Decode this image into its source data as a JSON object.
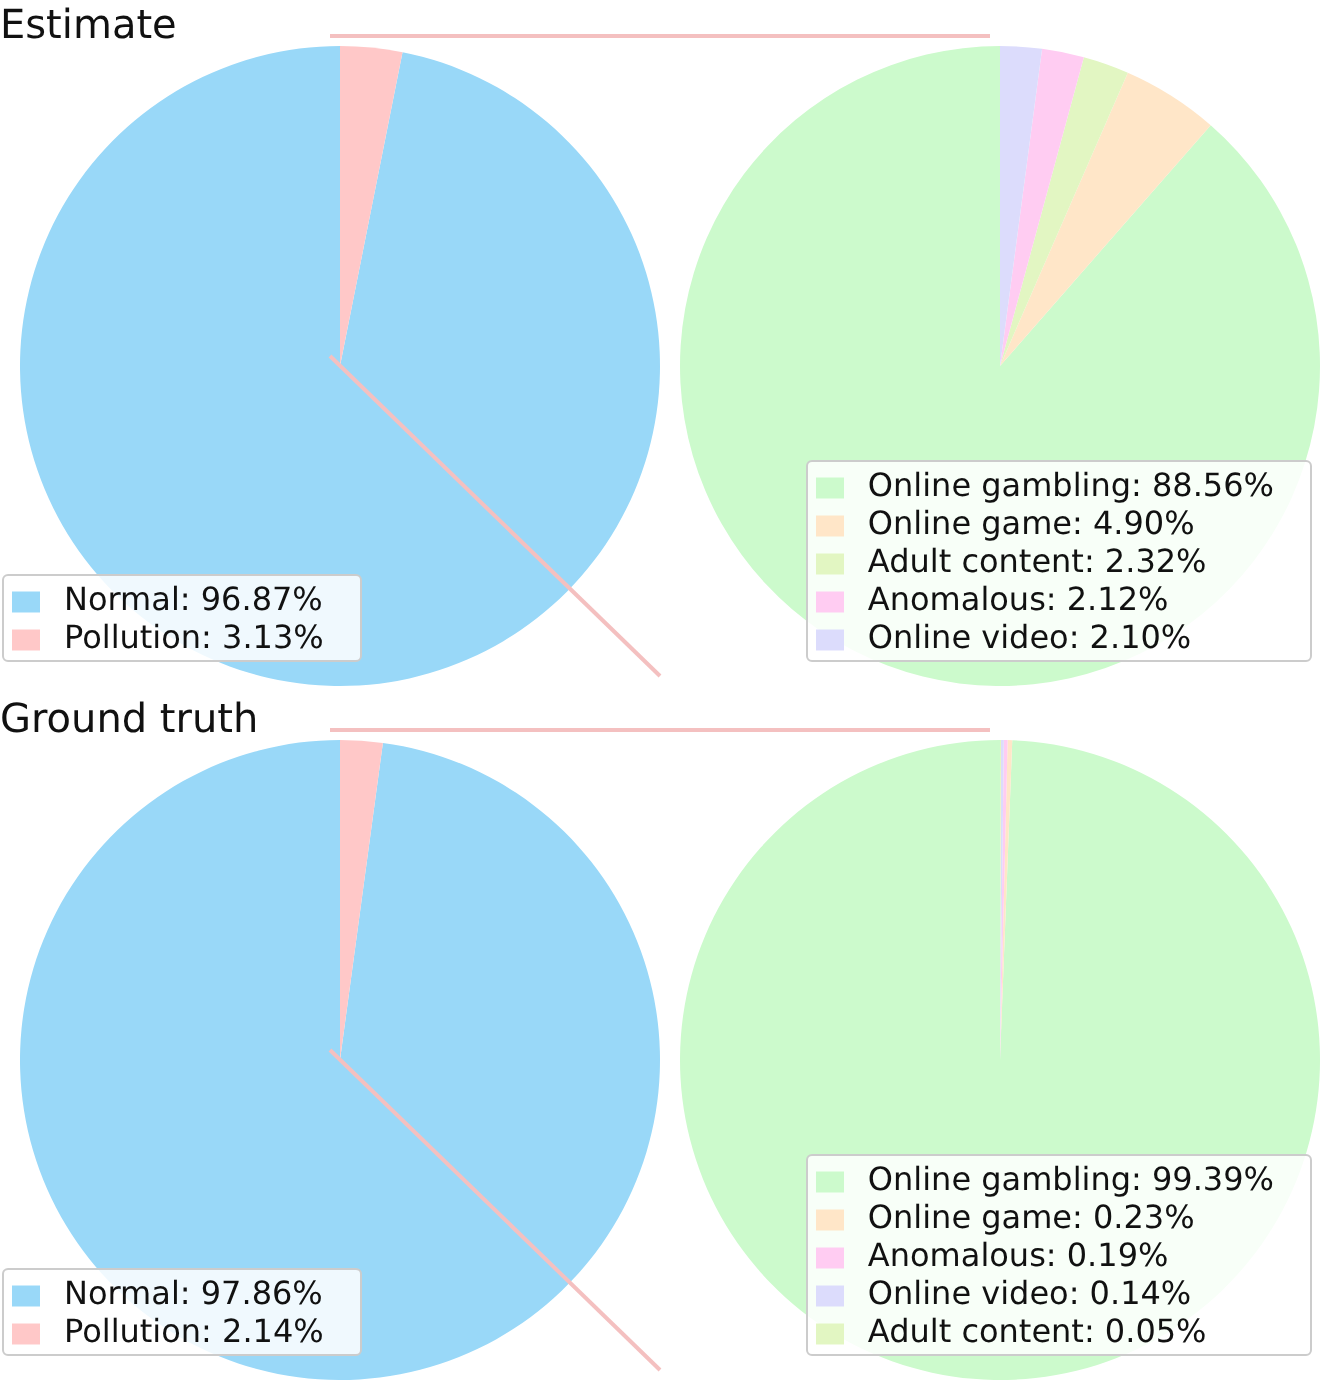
{
  "chart_data": [
    {
      "type": "pie",
      "title": "Estimate",
      "categories": [
        "Normal: 96.87%",
        "Pollution: 3.13%"
      ],
      "values": [
        96.87,
        3.13
      ],
      "colors": [
        "#99d8f8",
        "#ffc8c8"
      ],
      "legend": "bottom left"
    },
    {
      "type": "pie",
      "categories": [
        "Online gambling: 88.56%",
        "Online game: 4.90%",
        "Adult content: 2.32%",
        "Anomalous: 2.12%",
        "Online video: 2.10%"
      ],
      "values": [
        88.56,
        4.9,
        2.32,
        2.12,
        2.1
      ],
      "colors": [
        "#ccfacc",
        "#ffe6c8",
        "#e2f6c2",
        "#ffccf2",
        "#dcdcfc"
      ],
      "legend": "bottom right"
    },
    {
      "type": "pie",
      "title": "Ground truth",
      "categories": [
        "Normal: 97.86%",
        "Pollution: 2.14%"
      ],
      "values": [
        97.86,
        2.14
      ],
      "colors": [
        "#99d8f8",
        "#ffc8c8"
      ],
      "legend": "bottom left"
    },
    {
      "type": "pie",
      "categories": [
        "Online gambling: 99.39%",
        "Online game: 0.23%",
        "Anomalous: 0.19%",
        "Online video: 0.14%",
        "Adult content: 0.05%"
      ],
      "values": [
        99.39,
        0.23,
        0.19,
        0.14,
        0.05
      ],
      "colors": [
        "#ccfacc",
        "#ffe6c8",
        "#ffccf2",
        "#dcdcfc",
        "#e2f6c2"
      ],
      "legend": "bottom right"
    }
  ]
}
